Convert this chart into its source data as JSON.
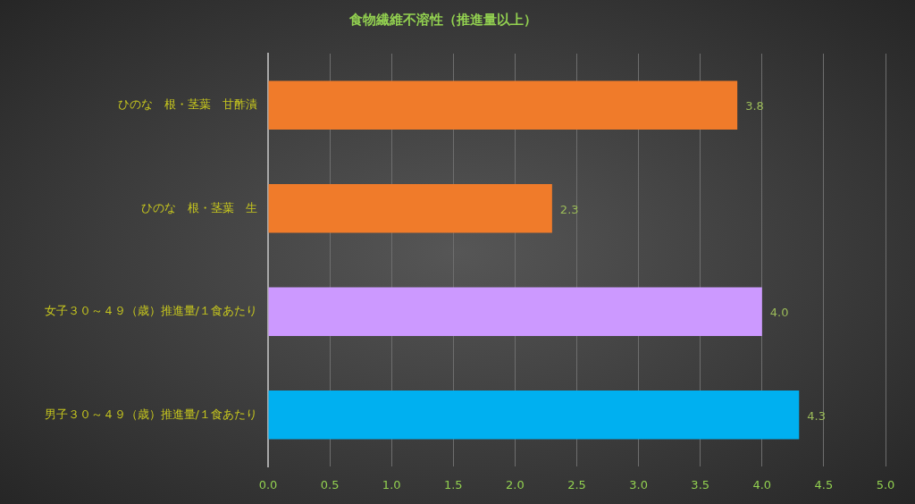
{
  "chart_data": {
    "type": "bar",
    "orientation": "horizontal",
    "title": "食物繊維不溶性（推進量以上）",
    "categories": [
      "ひのな　根・茎葉　甘酢漬",
      "ひのな　根・茎葉　生",
      "女子３０～４９（歳）推進量/１食あたり",
      "男子３０～４９（歳）推進量/１食あたり"
    ],
    "values": [
      3.8,
      2.3,
      4.0,
      4.3
    ],
    "colors": [
      "#f07b2a",
      "#f07b2a",
      "#cc99ff",
      "#00b0f0"
    ],
    "value_labels": [
      "3.8",
      "2.3",
      "4.0",
      "4.3"
    ],
    "xlim": [
      0,
      5
    ],
    "xticks": [
      {
        "value": 0,
        "label": "0.0"
      },
      {
        "value": 0.5,
        "label": "0.5"
      },
      {
        "value": 1,
        "label": "1.0"
      },
      {
        "value": 1.5,
        "label": "1.5"
      },
      {
        "value": 2,
        "label": "2.0"
      },
      {
        "value": 2.5,
        "label": "2.5"
      },
      {
        "value": 3,
        "label": "3.0"
      },
      {
        "value": 3.5,
        "label": "3.5"
      },
      {
        "value": 4,
        "label": "4.0"
      },
      {
        "value": 4.5,
        "label": "4.5"
      },
      {
        "value": 5,
        "label": "5.0"
      }
    ],
    "grid": "x"
  }
}
